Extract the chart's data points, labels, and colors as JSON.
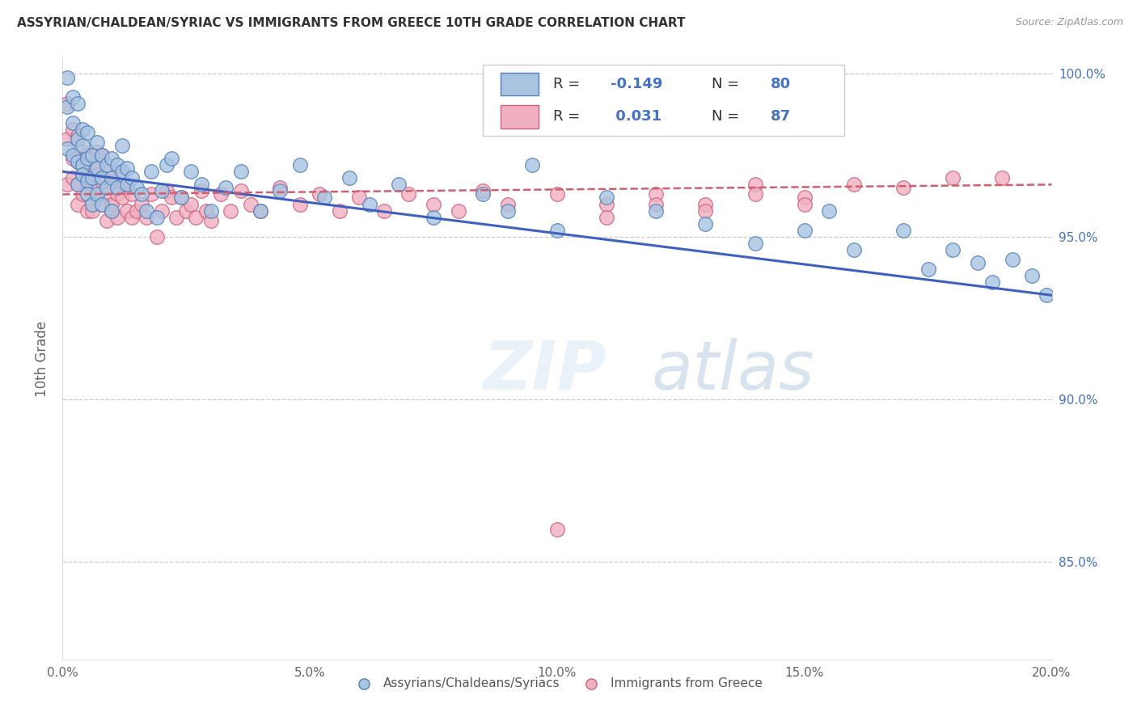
{
  "title": "ASSYRIAN/CHALDEAN/SYRIAC VS IMMIGRANTS FROM GREECE 10TH GRADE CORRELATION CHART",
  "source": "Source: ZipAtlas.com",
  "ylabel": "10th Grade",
  "xlim": [
    0.0,
    0.2
  ],
  "ylim": [
    0.82,
    1.005
  ],
  "xtick_vals": [
    0.0,
    0.05,
    0.1,
    0.15,
    0.2
  ],
  "xtick_labels": [
    "0.0%",
    "5.0%",
    "10.0%",
    "15.0%",
    "20.0%"
  ],
  "ytick_vals": [
    0.85,
    0.9,
    0.95,
    1.0
  ],
  "ytick_labels": [
    "85.0%",
    "90.0%",
    "95.0%",
    "100.0%"
  ],
  "blue_color": "#a8c4e0",
  "blue_edge": "#5080c0",
  "pink_color": "#f0b0c0",
  "pink_edge": "#d06080",
  "blue_line_color": "#4060c0",
  "pink_line_color": "#d06070",
  "accent_color": "#4472c4",
  "watermark_zip": "ZIP",
  "watermark_atlas": "atlas",
  "legend_label_blue": "Assyrians/Chaldeans/Syriacs",
  "legend_label_pink": "Immigrants from Greece",
  "blue_x": [
    0.001,
    0.001,
    0.001,
    0.002,
    0.002,
    0.002,
    0.003,
    0.003,
    0.003,
    0.003,
    0.004,
    0.004,
    0.004,
    0.004,
    0.005,
    0.005,
    0.005,
    0.005,
    0.006,
    0.006,
    0.006,
    0.007,
    0.007,
    0.007,
    0.008,
    0.008,
    0.008,
    0.009,
    0.009,
    0.01,
    0.01,
    0.01,
    0.011,
    0.011,
    0.012,
    0.012,
    0.013,
    0.013,
    0.014,
    0.015,
    0.016,
    0.017,
    0.018,
    0.019,
    0.02,
    0.021,
    0.022,
    0.024,
    0.026,
    0.028,
    0.03,
    0.033,
    0.036,
    0.04,
    0.044,
    0.048,
    0.053,
    0.058,
    0.062,
    0.068,
    0.075,
    0.085,
    0.09,
    0.095,
    0.1,
    0.11,
    0.12,
    0.13,
    0.14,
    0.15,
    0.155,
    0.16,
    0.17,
    0.175,
    0.18,
    0.185,
    0.188,
    0.192,
    0.196,
    0.199
  ],
  "blue_y": [
    0.99,
    0.977,
    0.999,
    0.985,
    0.975,
    0.993,
    0.973,
    0.98,
    0.966,
    0.991,
    0.972,
    0.983,
    0.969,
    0.978,
    0.967,
    0.974,
    0.982,
    0.963,
    0.975,
    0.968,
    0.96,
    0.971,
    0.963,
    0.979,
    0.968,
    0.975,
    0.96,
    0.972,
    0.965,
    0.968,
    0.974,
    0.958,
    0.972,
    0.965,
    0.97,
    0.978,
    0.966,
    0.971,
    0.968,
    0.965,
    0.963,
    0.958,
    0.97,
    0.956,
    0.964,
    0.972,
    0.974,
    0.962,
    0.97,
    0.966,
    0.958,
    0.965,
    0.97,
    0.958,
    0.964,
    0.972,
    0.962,
    0.968,
    0.96,
    0.966,
    0.956,
    0.963,
    0.958,
    0.972,
    0.952,
    0.962,
    0.958,
    0.954,
    0.948,
    0.952,
    0.958,
    0.946,
    0.952,
    0.94,
    0.946,
    0.942,
    0.936,
    0.943,
    0.938,
    0.932
  ],
  "pink_x": [
    0.001,
    0.001,
    0.001,
    0.002,
    0.002,
    0.002,
    0.003,
    0.003,
    0.003,
    0.003,
    0.004,
    0.004,
    0.004,
    0.005,
    0.005,
    0.005,
    0.006,
    0.006,
    0.006,
    0.007,
    0.007,
    0.007,
    0.008,
    0.008,
    0.008,
    0.009,
    0.009,
    0.009,
    0.01,
    0.01,
    0.01,
    0.011,
    0.011,
    0.012,
    0.012,
    0.013,
    0.013,
    0.014,
    0.014,
    0.015,
    0.016,
    0.017,
    0.018,
    0.019,
    0.02,
    0.021,
    0.022,
    0.023,
    0.024,
    0.025,
    0.026,
    0.027,
    0.028,
    0.029,
    0.03,
    0.032,
    0.034,
    0.036,
    0.038,
    0.04,
    0.044,
    0.048,
    0.052,
    0.056,
    0.06,
    0.065,
    0.07,
    0.075,
    0.08,
    0.085,
    0.09,
    0.1,
    0.11,
    0.12,
    0.13,
    0.14,
    0.15,
    0.16,
    0.17,
    0.18,
    0.19,
    0.1,
    0.11,
    0.12,
    0.13,
    0.14,
    0.15
  ],
  "pink_y": [
    0.98,
    0.966,
    0.991,
    0.974,
    0.968,
    0.983,
    0.966,
    0.973,
    0.981,
    0.96,
    0.969,
    0.976,
    0.963,
    0.968,
    0.975,
    0.958,
    0.965,
    0.972,
    0.958,
    0.962,
    0.969,
    0.976,
    0.96,
    0.967,
    0.975,
    0.955,
    0.963,
    0.97,
    0.96,
    0.967,
    0.958,
    0.956,
    0.963,
    0.962,
    0.97,
    0.958,
    0.965,
    0.956,
    0.963,
    0.958,
    0.96,
    0.956,
    0.963,
    0.95,
    0.958,
    0.964,
    0.962,
    0.956,
    0.962,
    0.958,
    0.96,
    0.956,
    0.964,
    0.958,
    0.955,
    0.963,
    0.958,
    0.964,
    0.96,
    0.958,
    0.965,
    0.96,
    0.963,
    0.958,
    0.962,
    0.958,
    0.963,
    0.96,
    0.958,
    0.964,
    0.96,
    0.963,
    0.96,
    0.963,
    0.96,
    0.966,
    0.962,
    0.966,
    0.965,
    0.968,
    0.968,
    0.86,
    0.956,
    0.96,
    0.958,
    0.963,
    0.96
  ]
}
